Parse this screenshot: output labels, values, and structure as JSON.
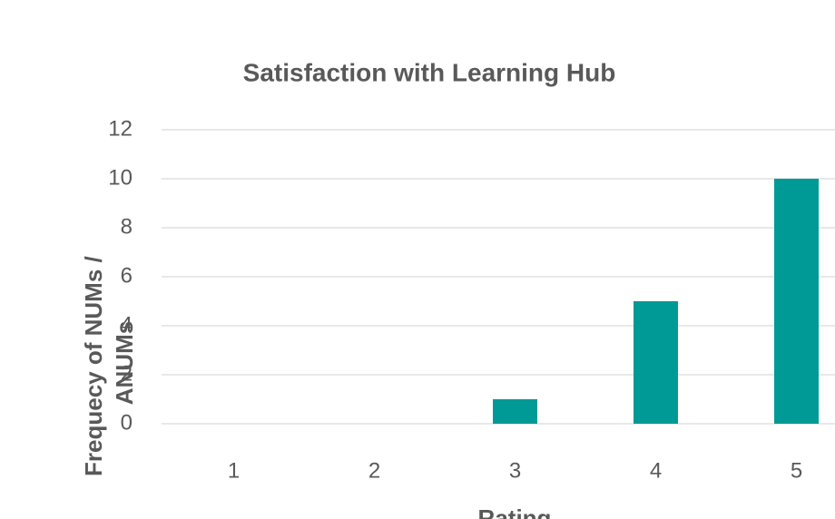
{
  "chart_data": {
    "type": "bar",
    "title": "Satisfaction with Learning Hub",
    "x_label": "Rating",
    "y_label": "Frequecy of NUMs / ANUMs",
    "categories": [
      "1",
      "2",
      "3",
      "4",
      "5"
    ],
    "values": [
      0,
      0,
      1,
      5,
      10
    ],
    "color": "#009a96",
    "ylim": [
      0,
      12
    ],
    "yticks": [
      0,
      2,
      4,
      6,
      8,
      10,
      12
    ],
    "grid": true
  }
}
